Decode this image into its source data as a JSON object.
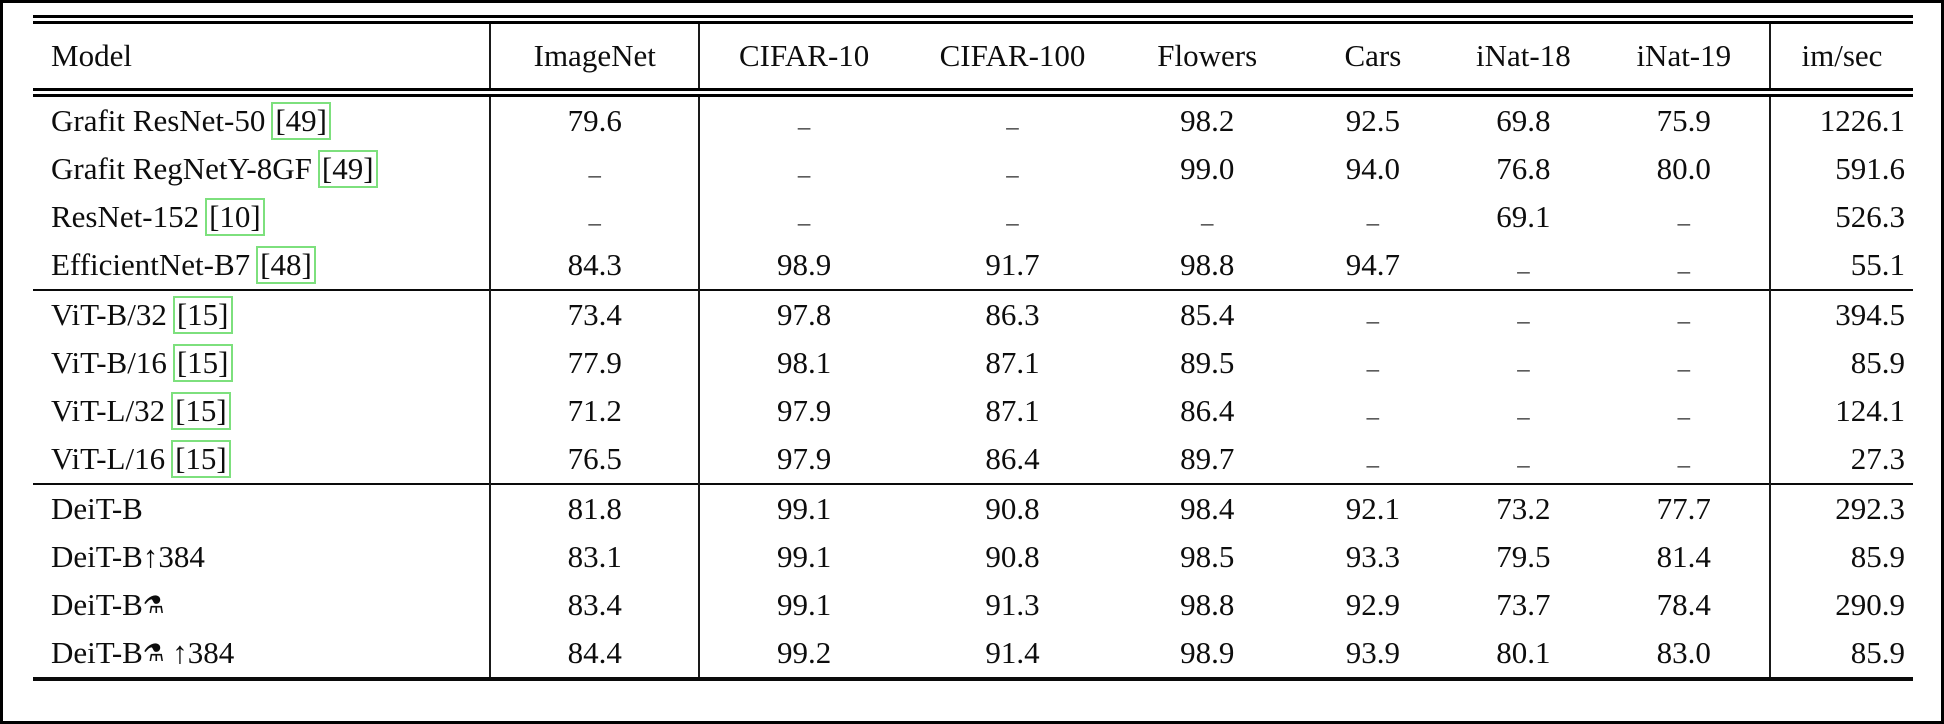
{
  "figure": {
    "background": "#ffffff",
    "text_color": "#0d0d0d",
    "citation_box_color": "#7de07d"
  },
  "table": {
    "columns": [
      "Model",
      "ImageNet",
      "CIFAR-10",
      "CIFAR-100",
      "Flowers",
      "Cars",
      "iNat-18",
      "iNat-19",
      "im/sec"
    ],
    "missing_value": "–",
    "groups": [
      {
        "rows": [
          {
            "model": "Grafit ResNet-50",
            "citation": "49",
            "values": [
              "79.6",
              "–",
              "–",
              "98.2",
              "92.5",
              "69.8",
              "75.9",
              "1226.1"
            ]
          },
          {
            "model": "Grafit RegNetY-8GF",
            "citation": "49",
            "values": [
              "–",
              "–",
              "–",
              "99.0",
              "94.0",
              "76.8",
              "80.0",
              "591.6"
            ]
          },
          {
            "model": "ResNet-152",
            "citation": "10",
            "values": [
              "–",
              "–",
              "–",
              "–",
              "–",
              "69.1",
              "–",
              "526.3"
            ]
          },
          {
            "model": "EfficientNet-B7",
            "citation": "48",
            "values": [
              "84.3",
              "98.9",
              "91.7",
              "98.8",
              "94.7",
              "–",
              "–",
              "55.1"
            ]
          }
        ]
      },
      {
        "rows": [
          {
            "model": "ViT-B/32",
            "citation": "15",
            "values": [
              "73.4",
              "97.8",
              "86.3",
              "85.4",
              "–",
              "–",
              "–",
              "394.5"
            ]
          },
          {
            "model": "ViT-B/16",
            "citation": "15",
            "values": [
              "77.9",
              "98.1",
              "87.1",
              "89.5",
              "–",
              "–",
              "–",
              "85.9"
            ]
          },
          {
            "model": "ViT-L/32",
            "citation": "15",
            "values": [
              "71.2",
              "97.9",
              "87.1",
              "86.4",
              "–",
              "–",
              "–",
              "124.1"
            ]
          },
          {
            "model": "ViT-L/16",
            "citation": "15",
            "values": [
              "76.5",
              "97.9",
              "86.4",
              "89.7",
              "–",
              "–",
              "–",
              "27.3"
            ]
          }
        ]
      },
      {
        "rows": [
          {
            "model": "DeiT-B",
            "citation": null,
            "values": [
              "81.8",
              "99.1",
              "90.8",
              "98.4",
              "92.1",
              "73.2",
              "77.7",
              "292.3"
            ]
          },
          {
            "model": "DeiT-B↑384",
            "citation": null,
            "values": [
              "83.1",
              "99.1",
              "90.8",
              "98.5",
              "93.3",
              "79.5",
              "81.4",
              "85.9"
            ]
          },
          {
            "model": "DeiT-B⚗",
            "citation": null,
            "values": [
              "83.4",
              "99.1",
              "91.3",
              "98.8",
              "92.9",
              "73.7",
              "78.4",
              "290.9"
            ]
          },
          {
            "model": "DeiT-B⚗ ↑384",
            "citation": null,
            "values": [
              "84.4",
              "99.2",
              "91.4",
              "98.9",
              "93.9",
              "80.1",
              "83.0",
              "85.9"
            ]
          }
        ]
      }
    ]
  }
}
